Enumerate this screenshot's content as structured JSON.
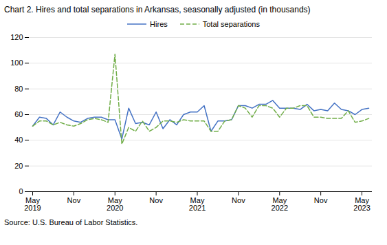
{
  "chart_data": {
    "type": "line",
    "title": "Chart 2. Hires and total separations in Arkansas, seasonally adjusted (in thousands)",
    "source": "Source: U.S. Bureau of Labor Statistics.",
    "categories": [
      "May\n2019",
      null,
      null,
      null,
      null,
      null,
      "Nov",
      null,
      null,
      null,
      null,
      null,
      "May\n2020",
      null,
      null,
      null,
      null,
      null,
      "Nov",
      null,
      null,
      null,
      null,
      null,
      "May\n2021",
      null,
      null,
      null,
      null,
      null,
      "Nov",
      null,
      null,
      null,
      null,
      null,
      "May\n2022",
      null,
      null,
      null,
      null,
      null,
      "Nov",
      null,
      null,
      null,
      null,
      null,
      "May\n2023",
      null
    ],
    "series": [
      {
        "name": "Hires",
        "color": "#4472c4",
        "line_style": "solid",
        "values": [
          51,
          58,
          57,
          52,
          62,
          58,
          55,
          54,
          57,
          58,
          58,
          56,
          56,
          41,
          65,
          53,
          54,
          52,
          62,
          49,
          56,
          52,
          60,
          62,
          62,
          67,
          47,
          55,
          55,
          56,
          67,
          67,
          65,
          68,
          68,
          71,
          65,
          65,
          65,
          64,
          68,
          63,
          64,
          63,
          69,
          64,
          63,
          60,
          64,
          65
        ]
      },
      {
        "name": "Total separations",
        "color": "#70ad47",
        "line_style": "dashed",
        "values": [
          51,
          55,
          55,
          52,
          54,
          52,
          51,
          53,
          56,
          57,
          56,
          54,
          107,
          37,
          50,
          47,
          55,
          47,
          50,
          55,
          55,
          54,
          56,
          55,
          55,
          55,
          47,
          47,
          55,
          56,
          67,
          65,
          58,
          67,
          67,
          65,
          58,
          65,
          65,
          67,
          67,
          58,
          58,
          57,
          57,
          57,
          63,
          54,
          55,
          57
        ]
      }
    ],
    "ylim": [
      0,
      120
    ],
    "yticks": [
      0,
      20,
      40,
      60,
      80,
      100,
      120
    ],
    "grid": true,
    "legend": "top"
  }
}
